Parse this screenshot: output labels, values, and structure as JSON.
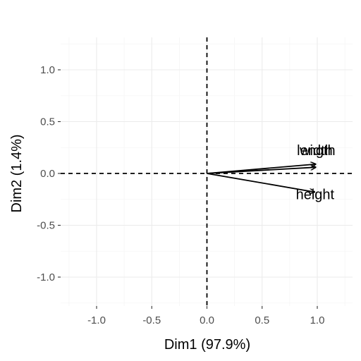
{
  "chart_data": {
    "type": "scatter",
    "subtype": "pca-variable-arrows",
    "title": "",
    "xlabel": "Dim1 (97.9%)",
    "ylabel": "Dim2 (1.4%)",
    "xlim": [
      -1.3,
      1.3
    ],
    "ylim": [
      -1.3,
      1.3
    ],
    "x_ticks": [
      -1.0,
      -0.5,
      0.0,
      0.5,
      1.0
    ],
    "y_ticks": [
      -1.0,
      -0.5,
      0.0,
      0.5,
      1.0
    ],
    "x_tick_labels": [
      "-1.0",
      "-0.5",
      "0.0",
      "0.5",
      "1.0"
    ],
    "y_tick_labels": [
      "-1.0",
      "-0.5",
      "0.0",
      "0.5",
      "1.0"
    ],
    "grid": true,
    "reference_lines": {
      "x": 0,
      "y": 0,
      "style": "dashed"
    },
    "vectors": [
      {
        "label": "width",
        "x": 0.99,
        "y": 0.09
      },
      {
        "label": "length",
        "x": 0.99,
        "y": 0.06
      },
      {
        "label": "height",
        "x": 0.98,
        "y": -0.18
      }
    ],
    "colors": {
      "arrow": "#000000",
      "grid": "#ebebeb",
      "background": "#ffffff"
    }
  }
}
